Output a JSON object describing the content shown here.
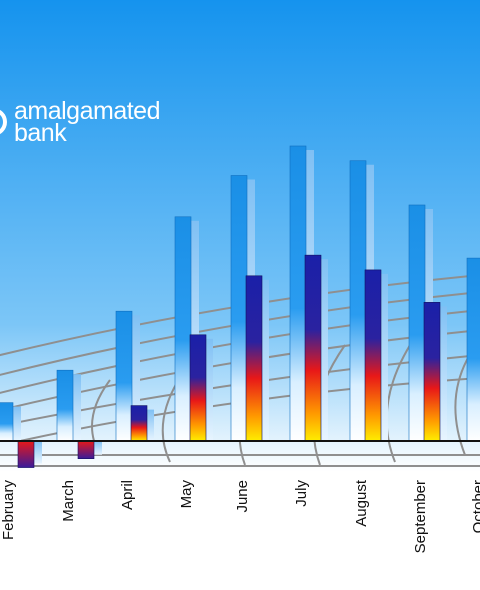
{
  "brand": {
    "line1": "amalgamated",
    "line2": "bank"
  },
  "colors": {
    "sky_top": "#1593ee",
    "sky_bottom": "#ffffff",
    "bar_blue": "#1a8fe6",
    "bar_navy": "#1a20a8",
    "bar_red": "#e81818",
    "bar_yellow": "#ffee00",
    "axis": "#111111",
    "grid": "#8a8a8a"
  },
  "chart_data": {
    "type": "bar",
    "categories": [
      "February",
      "March",
      "April",
      "May",
      "June",
      "July",
      "August",
      "September",
      "October"
    ],
    "series": [
      {
        "values": [
          1.3,
          2.4,
          4.4,
          7.6,
          9.0,
          10.0,
          9.5,
          8.0,
          6.2
        ]
      },
      {
        "values": [
          -0.9,
          -0.6,
          1.2,
          3.6,
          5.6,
          6.3,
          5.8,
          4.7,
          0
        ]
      }
    ],
    "ylim": [
      -1.5,
      11
    ],
    "title": "",
    "xlabel": "",
    "ylabel": "",
    "grid": true
  }
}
